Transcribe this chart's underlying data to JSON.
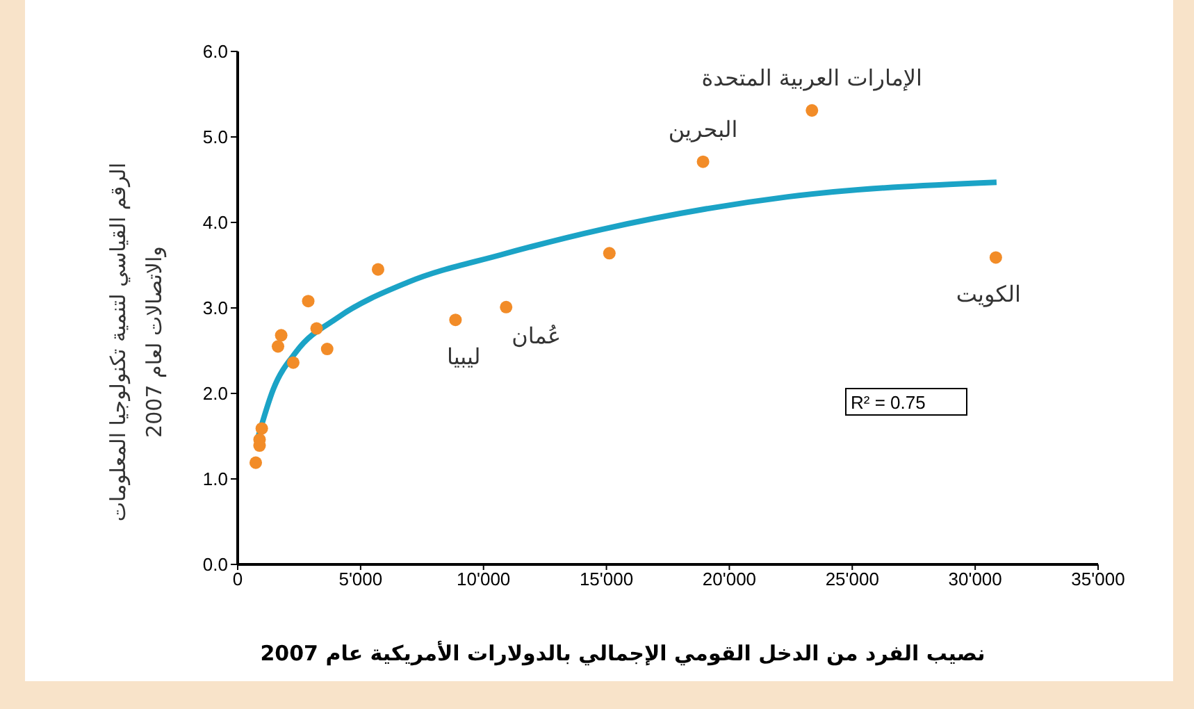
{
  "chart_data": {
    "type": "scatter",
    "xlabel": "نصيب الفرد من الدخل القومي الإجمالي بالدولارات الأمريكية عام 2007",
    "ylabel": "الرقم القياسي لتنمية تكنولوجيا المعلومات\nوالاتصالات لعام 2007",
    "series": [
      {
        "color": "#f28c28",
        "marker": "circle",
        "x": [
          735,
          890,
          980,
          890,
          1770,
          1640,
          2870,
          3210,
          3640,
          2260,
          5710,
          8860,
          10920,
          15120,
          18930,
          23360,
          30840
        ],
        "values": [
          1.19,
          1.39,
          1.59,
          1.46,
          2.68,
          2.55,
          3.08,
          2.76,
          2.52,
          2.36,
          3.45,
          2.86,
          3.01,
          3.64,
          4.71,
          5.31,
          3.59
        ]
      },
      {
        "type": "line",
        "color": "#1ba3c6",
        "marker": "none",
        "line_style": "solid",
        "x": [
          790,
          1450,
          2390,
          4090,
          6920,
          10690,
          14840,
          22380,
          30870
        ],
        "values": [
          1.45,
          2.05,
          2.49,
          2.89,
          3.3,
          3.62,
          3.92,
          4.3,
          4.47
        ]
      }
    ],
    "xlim": [
      0,
      35000
    ],
    "xticks": [
      0,
      {
        "value": 5000,
        "label": "5'000"
      },
      {
        "value": 10000,
        "label": "10'000"
      },
      {
        "value": 15000,
        "label": "15'000"
      },
      {
        "value": 20000,
        "label": "20'000"
      },
      {
        "value": 25000,
        "label": "25'000"
      },
      {
        "value": 30000,
        "label": "30'000"
      },
      {
        "value": 35000,
        "label": "35'000"
      }
    ],
    "ylim": [
      0,
      6
    ],
    "yticks": [
      {
        "value": 0,
        "label": "0.0"
      },
      {
        "value": 1,
        "label": "1.0"
      },
      {
        "value": 2,
        "label": "2.0"
      },
      {
        "value": 3,
        "label": "3.0"
      },
      {
        "value": 4,
        "label": "4.0"
      },
      {
        "value": 5,
        "label": "5.0"
      },
      {
        "value": 6,
        "label": "6.0"
      }
    ],
    "grid": false,
    "legend": false,
    "annotations": [
      {
        "text": "ليبيا",
        "x": 8860,
        "y": 2.86
      },
      {
        "text": "عُمان",
        "x": 10920,
        "y": 3.01
      },
      {
        "text": "البحرين",
        "x": 18930,
        "y": 4.71
      },
      {
        "text": "الإمارات العربية المتحدة",
        "x": 23360,
        "y": 5.31
      },
      {
        "text": "الكويت",
        "x": 30840,
        "y": 3.59
      },
      "R² = 0.75"
    ]
  }
}
